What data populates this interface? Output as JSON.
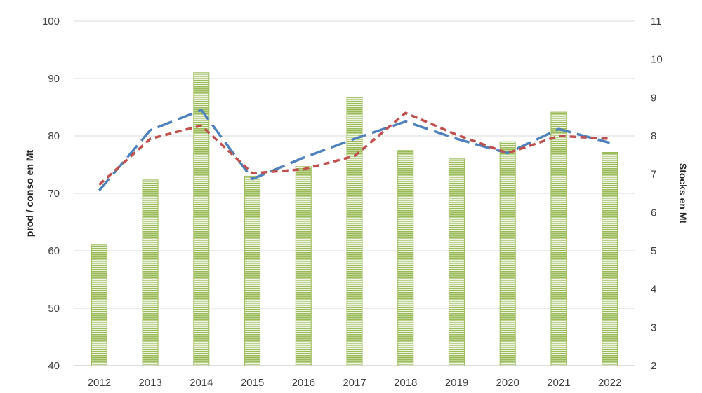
{
  "chart_data": {
    "type": "bar",
    "categories": [
      "2012",
      "2013",
      "2014",
      "2015",
      "2016",
      "2017",
      "2018",
      "2019",
      "2020",
      "2021",
      "2022"
    ],
    "series": [
      {
        "kind": "bar",
        "axis": "right",
        "values": [
          5.15,
          6.85,
          9.65,
          6.95,
          7.2,
          9.0,
          7.62,
          7.4,
          7.85,
          8.62,
          7.57
        ]
      },
      {
        "kind": "line",
        "axis": "left",
        "style": "long-dash",
        "values": [
          70.5,
          81.0,
          84.5,
          72.5,
          76.2,
          79.5,
          82.5,
          79.5,
          77.0,
          81.2,
          78.8
        ]
      },
      {
        "kind": "line",
        "axis": "left",
        "style": "short-dash",
        "values": [
          71.5,
          79.5,
          81.8,
          73.5,
          74.2,
          76.5,
          84.0,
          80.2,
          77.0,
          80.0,
          79.5
        ]
      }
    ],
    "ylabel": "prod  / conso en Mt",
    "y2label": "Stocks en Mt",
    "ylim": [
      40,
      100
    ],
    "y2lim": [
      2,
      11
    ],
    "yticks": [
      "40",
      "50",
      "60",
      "70",
      "80",
      "90",
      "100"
    ],
    "y2ticks": [
      "2",
      "3",
      "4",
      "5",
      "6",
      "7",
      "8",
      "9",
      "10",
      "11"
    ],
    "grid": true,
    "legend": "none",
    "colors": {
      "bar_fill": "#9bbb59",
      "bar_stripe": "#ffffff",
      "line_1": "#4f81bd",
      "line_2": "#c0504d",
      "grid": "#d9d9d9",
      "axis": "#bfbfbf"
    }
  }
}
